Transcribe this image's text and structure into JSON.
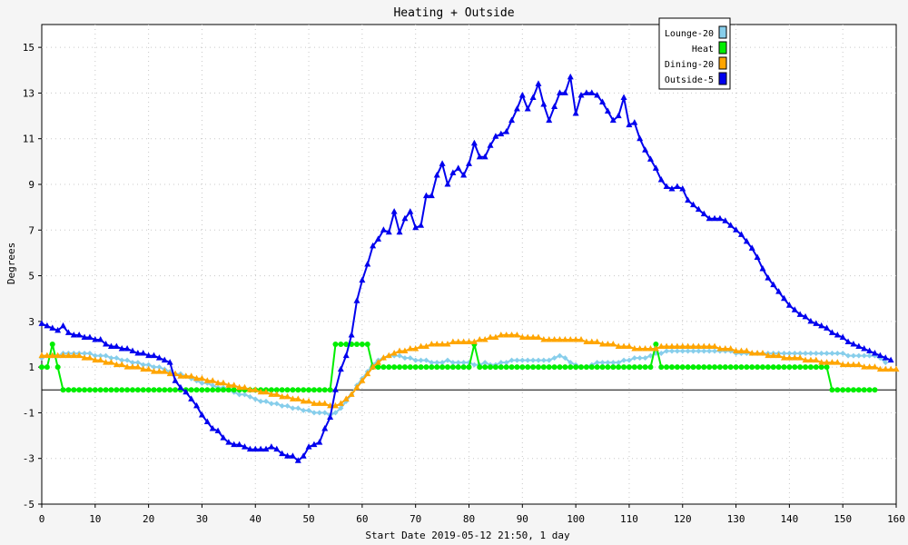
{
  "chart_data": {
    "type": "line",
    "title": "Heating + Outside",
    "xlabel": "Start Date 2019-05-12 21:50, 1 day",
    "ylabel": "Degrees",
    "xlim": [
      0,
      160
    ],
    "ylim": [
      -5,
      16
    ],
    "x_ticks": [
      0,
      10,
      20,
      30,
      40,
      50,
      60,
      70,
      80,
      90,
      100,
      110,
      120,
      130,
      140,
      150,
      160
    ],
    "y_ticks": [
      -5,
      -3,
      -1,
      1,
      3,
      5,
      7,
      9,
      11,
      13,
      15
    ],
    "grid": true,
    "legend_position": "top-right",
    "series": [
      {
        "name": "Lounge-20",
        "color": "#87ceeb",
        "marker": "diamond",
        "values": [
          1.4,
          1.5,
          1.5,
          1.5,
          1.6,
          1.6,
          1.6,
          1.6,
          1.6,
          1.6,
          1.5,
          1.5,
          1.5,
          1.4,
          1.4,
          1.3,
          1.3,
          1.2,
          1.2,
          1.1,
          1.1,
          1.0,
          1.0,
          0.9,
          0.8,
          0.7,
          0.7,
          0.6,
          0.5,
          0.4,
          0.3,
          0.3,
          0.2,
          0.1,
          0.1,
          0.0,
          -0.1,
          -0.2,
          -0.2,
          -0.3,
          -0.4,
          -0.5,
          -0.5,
          -0.6,
          -0.6,
          -0.7,
          -0.7,
          -0.8,
          -0.8,
          -0.9,
          -0.9,
          -1.0,
          -1.0,
          -1.0,
          -1.1,
          -1.0,
          -0.8,
          -0.5,
          -0.2,
          0.2,
          0.5,
          0.8,
          1.1,
          1.3,
          1.4,
          1.5,
          1.5,
          1.5,
          1.4,
          1.4,
          1.3,
          1.3,
          1.3,
          1.2,
          1.2,
          1.2,
          1.3,
          1.2,
          1.2,
          1.2,
          1.2,
          1.1,
          1.1,
          1.2,
          1.1,
          1.1,
          1.2,
          1.2,
          1.3,
          1.3,
          1.3,
          1.3,
          1.3,
          1.3,
          1.3,
          1.3,
          1.4,
          1.5,
          1.4,
          1.2,
          1.1,
          1.0,
          1.0,
          1.1,
          1.2,
          1.2,
          1.2,
          1.2,
          1.2,
          1.3,
          1.3,
          1.4,
          1.4,
          1.4,
          1.5,
          1.6,
          1.6,
          1.7,
          1.7,
          1.7,
          1.7,
          1.7,
          1.7,
          1.7,
          1.7,
          1.7,
          1.7,
          1.7,
          1.7,
          1.7,
          1.6,
          1.6,
          1.6,
          1.6,
          1.6,
          1.6,
          1.6,
          1.6,
          1.6,
          1.6,
          1.6,
          1.6,
          1.6,
          1.6,
          1.6,
          1.6,
          1.6,
          1.6,
          1.6,
          1.6,
          1.6,
          1.5,
          1.5,
          1.5,
          1.5,
          1.5,
          1.5,
          1.4,
          1.2
        ]
      },
      {
        "name": "Heat",
        "color": "#00ee00",
        "marker": "circle",
        "values": [
          1,
          1,
          2,
          1,
          0,
          0,
          0,
          0,
          0,
          0,
          0,
          0,
          0,
          0,
          0,
          0,
          0,
          0,
          0,
          0,
          0,
          0,
          0,
          0,
          0,
          0,
          0,
          0,
          0,
          0,
          0,
          0,
          0,
          0,
          0,
          0,
          0,
          0,
          0,
          0,
          0,
          0,
          0,
          0,
          0,
          0,
          0,
          0,
          0,
          0,
          0,
          0,
          0,
          0,
          0,
          2,
          2,
          2,
          2,
          2,
          2,
          2,
          1,
          1,
          1,
          1,
          1,
          1,
          1,
          1,
          1,
          1,
          1,
          1,
          1,
          1,
          1,
          1,
          1,
          1,
          1,
          2,
          1,
          1,
          1,
          1,
          1,
          1,
          1,
          1,
          1,
          1,
          1,
          1,
          1,
          1,
          1,
          1,
          1,
          1,
          1,
          1,
          1,
          1,
          1,
          1,
          1,
          1,
          1,
          1,
          1,
          1,
          1,
          1,
          1,
          2,
          1,
          1,
          1,
          1,
          1,
          1,
          1,
          1,
          1,
          1,
          1,
          1,
          1,
          1,
          1,
          1,
          1,
          1,
          1,
          1,
          1,
          1,
          1,
          1,
          1,
          1,
          1,
          1,
          1,
          1,
          1,
          1,
          0,
          0,
          0,
          0,
          0,
          0,
          0,
          0,
          0
        ]
      },
      {
        "name": "Dining-20",
        "color": "#ffa500",
        "marker": "triangle",
        "values": [
          1.5,
          1.5,
          1.5,
          1.5,
          1.5,
          1.5,
          1.5,
          1.5,
          1.4,
          1.4,
          1.3,
          1.3,
          1.2,
          1.2,
          1.1,
          1.1,
          1.0,
          1.0,
          1.0,
          0.9,
          0.9,
          0.8,
          0.8,
          0.8,
          0.7,
          0.7,
          0.6,
          0.6,
          0.6,
          0.5,
          0.5,
          0.4,
          0.4,
          0.3,
          0.3,
          0.2,
          0.2,
          0.1,
          0.1,
          0.0,
          0.0,
          -0.1,
          -0.1,
          -0.2,
          -0.2,
          -0.3,
          -0.3,
          -0.4,
          -0.4,
          -0.5,
          -0.5,
          -0.6,
          -0.6,
          -0.6,
          -0.7,
          -0.7,
          -0.6,
          -0.4,
          -0.2,
          0.1,
          0.4,
          0.7,
          1.0,
          1.2,
          1.4,
          1.5,
          1.6,
          1.7,
          1.7,
          1.8,
          1.8,
          1.9,
          1.9,
          2.0,
          2.0,
          2.0,
          2.0,
          2.1,
          2.1,
          2.1,
          2.1,
          2.1,
          2.2,
          2.2,
          2.3,
          2.3,
          2.4,
          2.4,
          2.4,
          2.4,
          2.3,
          2.3,
          2.3,
          2.3,
          2.2,
          2.2,
          2.2,
          2.2,
          2.2,
          2.2,
          2.2,
          2.2,
          2.1,
          2.1,
          2.1,
          2.0,
          2.0,
          2.0,
          1.9,
          1.9,
          1.9,
          1.8,
          1.8,
          1.8,
          1.8,
          1.8,
          1.9,
          1.9,
          1.9,
          1.9,
          1.9,
          1.9,
          1.9,
          1.9,
          1.9,
          1.9,
          1.9,
          1.8,
          1.8,
          1.8,
          1.7,
          1.7,
          1.7,
          1.6,
          1.6,
          1.6,
          1.5,
          1.5,
          1.5,
          1.4,
          1.4,
          1.4,
          1.4,
          1.3,
          1.3,
          1.3,
          1.2,
          1.2,
          1.2,
          1.2,
          1.1,
          1.1,
          1.1,
          1.1,
          1.0,
          1.0,
          1.0,
          0.9,
          0.9,
          0.9,
          0.9
        ]
      },
      {
        "name": "Outside-5",
        "color": "#0000ee",
        "marker": "triangle",
        "values": [
          2.9,
          2.8,
          2.7,
          2.6,
          2.8,
          2.5,
          2.4,
          2.4,
          2.3,
          2.3,
          2.2,
          2.2,
          2.0,
          1.9,
          1.9,
          1.8,
          1.8,
          1.7,
          1.6,
          1.6,
          1.5,
          1.5,
          1.4,
          1.3,
          1.2,
          0.4,
          0.1,
          -0.1,
          -0.4,
          -0.7,
          -1.1,
          -1.4,
          -1.7,
          -1.8,
          -2.1,
          -2.3,
          -2.4,
          -2.4,
          -2.5,
          -2.6,
          -2.6,
          -2.6,
          -2.6,
          -2.5,
          -2.6,
          -2.8,
          -2.9,
          -2.9,
          -3.1,
          -2.9,
          -2.5,
          -2.4,
          -2.3,
          -1.7,
          -1.2,
          0.0,
          0.9,
          1.5,
          2.4,
          3.9,
          4.8,
          5.5,
          6.3,
          6.6,
          7.0,
          6.9,
          7.8,
          6.9,
          7.5,
          7.8,
          7.1,
          7.2,
          8.5,
          8.5,
          9.4,
          9.9,
          9.0,
          9.5,
          9.7,
          9.4,
          9.9,
          10.8,
          10.2,
          10.2,
          10.7,
          11.1,
          11.2,
          11.3,
          11.8,
          12.3,
          12.9,
          12.3,
          12.8,
          13.4,
          12.5,
          11.8,
          12.4,
          13.0,
          13.0,
          13.7,
          12.1,
          12.9,
          13.0,
          13.0,
          12.9,
          12.6,
          12.2,
          11.8,
          12.0,
          12.8,
          11.6,
          11.7,
          11.0,
          10.5,
          10.1,
          9.7,
          9.2,
          8.9,
          8.8,
          8.9,
          8.8,
          8.3,
          8.1,
          7.9,
          7.7,
          7.5,
          7.5,
          7.5,
          7.4,
          7.2,
          7.0,
          6.8,
          6.5,
          6.2,
          5.8,
          5.3,
          4.9,
          4.6,
          4.3,
          4.0,
          3.7,
          3.5,
          3.3,
          3.2,
          3.0,
          2.9,
          2.8,
          2.7,
          2.5,
          2.4,
          2.3,
          2.1,
          2.0,
          1.9,
          1.8,
          1.7,
          1.6,
          1.5,
          1.4,
          1.3
        ]
      }
    ]
  }
}
